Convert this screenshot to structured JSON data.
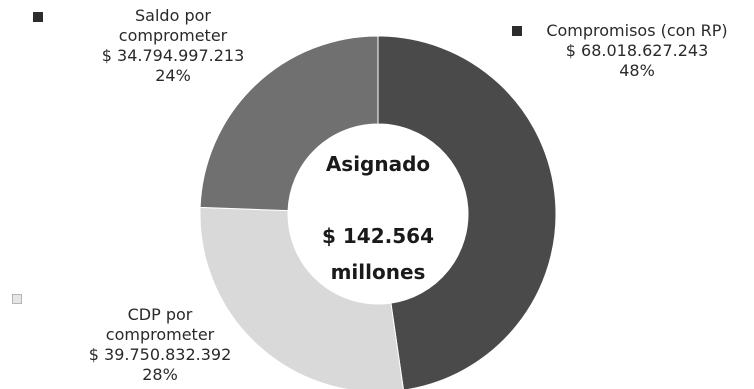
{
  "chart_data": {
    "type": "pie",
    "center": {
      "title": "Asignado",
      "amount": "$ 142.564",
      "unit": "millones"
    },
    "slices": [
      {
        "name_lines": [
          "Compromisos (con RP)"
        ],
        "value": 68018627243,
        "value_label": "$ 68.018.627.243",
        "percent_label": "48%",
        "color": "#4a4a4a"
      },
      {
        "name_lines": [
          "CDP por",
          "comprometer"
        ],
        "value": 39750832392,
        "value_label": "$ 39.750.832.392",
        "percent_label": "28%",
        "color": "#d9d9d9"
      },
      {
        "name_lines": [
          "Saldo por",
          "comprometer"
        ],
        "value": 34794997213,
        "value_label": "$ 34.794.997.213",
        "percent_label": "24%",
        "color": "#707070"
      }
    ]
  }
}
